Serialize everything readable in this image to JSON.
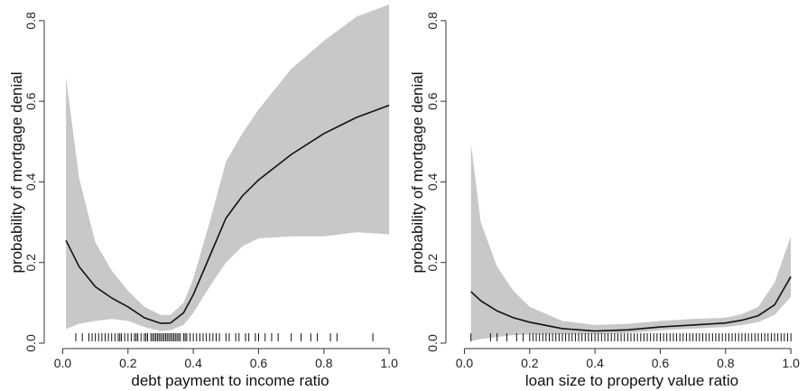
{
  "colors": {
    "band": "#c8c8c8",
    "line": "#111111",
    "rug": "#111111"
  },
  "chart_data": [
    {
      "type": "line",
      "title": "",
      "xlabel": "debt payment to income ratio",
      "ylabel": "probability of mortgage denial",
      "xlim": [
        -0.04,
        1.03
      ],
      "ylim": [
        0.0,
        0.84
      ],
      "xticks": [
        0.0,
        0.2,
        0.4,
        0.6,
        0.8,
        1.0
      ],
      "xtick_labels": [
        "0.0",
        "0.2",
        "0.4",
        "0.6",
        "0.8",
        "1.0"
      ],
      "yticks": [
        0.0,
        0.2,
        0.4,
        0.6,
        0.8
      ],
      "ytick_labels": [
        "0.0",
        "0.2",
        "0.4",
        "0.6",
        "0.8"
      ],
      "grid": false,
      "series": [
        {
          "x": [
            0.01,
            0.05,
            0.1,
            0.15,
            0.2,
            0.25,
            0.3,
            0.33,
            0.37,
            0.4,
            0.45,
            0.5,
            0.55,
            0.6,
            0.7,
            0.8,
            0.9,
            1.0
          ],
          "y": [
            0.255,
            0.19,
            0.14,
            0.112,
            0.09,
            0.063,
            0.049,
            0.05,
            0.075,
            0.12,
            0.215,
            0.31,
            0.365,
            0.405,
            0.468,
            0.52,
            0.56,
            0.59
          ],
          "lower": [
            0.035,
            0.048,
            0.055,
            0.06,
            0.055,
            0.04,
            0.03,
            0.032,
            0.045,
            0.075,
            0.14,
            0.2,
            0.24,
            0.26,
            0.265,
            0.265,
            0.275,
            0.27
          ],
          "upper": [
            0.66,
            0.41,
            0.25,
            0.18,
            0.13,
            0.09,
            0.07,
            0.07,
            0.1,
            0.16,
            0.3,
            0.45,
            0.52,
            0.58,
            0.68,
            0.75,
            0.81,
            0.84
          ]
        }
      ],
      "rug": [
        0.04,
        0.06,
        0.08,
        0.09,
        0.1,
        0.11,
        0.12,
        0.13,
        0.14,
        0.15,
        0.16,
        0.17,
        0.175,
        0.18,
        0.19,
        0.2,
        0.21,
        0.22,
        0.225,
        0.23,
        0.24,
        0.25,
        0.255,
        0.26,
        0.27,
        0.275,
        0.28,
        0.285,
        0.29,
        0.295,
        0.3,
        0.305,
        0.31,
        0.315,
        0.32,
        0.325,
        0.33,
        0.335,
        0.34,
        0.345,
        0.35,
        0.355,
        0.36,
        0.37,
        0.375,
        0.38,
        0.39,
        0.4,
        0.41,
        0.42,
        0.43,
        0.44,
        0.45,
        0.46,
        0.47,
        0.48,
        0.5,
        0.51,
        0.53,
        0.54,
        0.56,
        0.57,
        0.59,
        0.6,
        0.62,
        0.64,
        0.66,
        0.7,
        0.73,
        0.76,
        0.78,
        0.82,
        0.84,
        0.95
      ]
    },
    {
      "type": "line",
      "title": "",
      "xlabel": "loan size to property value ratio",
      "ylabel": "probability of mortgage denial",
      "xlim": [
        -0.04,
        1.03
      ],
      "ylim": [
        0.0,
        0.84
      ],
      "xticks": [
        0.0,
        0.2,
        0.4,
        0.6,
        0.8,
        1.0
      ],
      "xtick_labels": [
        "0.0",
        "0.2",
        "0.4",
        "0.6",
        "0.8",
        "1.0"
      ],
      "yticks": [
        0.0,
        0.2,
        0.4,
        0.6,
        0.8
      ],
      "ytick_labels": [
        "0.0",
        "0.2",
        "0.4",
        "0.6",
        "0.8"
      ],
      "grid": false,
      "series": [
        {
          "x": [
            0.02,
            0.05,
            0.1,
            0.15,
            0.2,
            0.3,
            0.4,
            0.5,
            0.6,
            0.7,
            0.8,
            0.85,
            0.9,
            0.95,
            1.0
          ],
          "y": [
            0.128,
            0.105,
            0.08,
            0.063,
            0.052,
            0.036,
            0.03,
            0.033,
            0.04,
            0.045,
            0.05,
            0.057,
            0.068,
            0.095,
            0.165
          ],
          "lower": [
            0.005,
            0.01,
            0.015,
            0.02,
            0.022,
            0.022,
            0.022,
            0.025,
            0.032,
            0.036,
            0.04,
            0.045,
            0.052,
            0.07,
            0.115
          ],
          "upper": [
            0.495,
            0.3,
            0.19,
            0.13,
            0.09,
            0.055,
            0.045,
            0.048,
            0.055,
            0.06,
            0.063,
            0.072,
            0.09,
            0.15,
            0.265
          ]
        }
      ],
      "rug": [
        0.02,
        0.08,
        0.1,
        0.13,
        0.16,
        0.18,
        0.2,
        0.21,
        0.22,
        0.23,
        0.24,
        0.25,
        0.26,
        0.27,
        0.28,
        0.29,
        0.3,
        0.31,
        0.32,
        0.33,
        0.34,
        0.35,
        0.36,
        0.37,
        0.38,
        0.39,
        0.4,
        0.41,
        0.42,
        0.43,
        0.44,
        0.45,
        0.46,
        0.47,
        0.48,
        0.49,
        0.5,
        0.51,
        0.52,
        0.53,
        0.54,
        0.55,
        0.56,
        0.57,
        0.58,
        0.59,
        0.6,
        0.61,
        0.62,
        0.63,
        0.64,
        0.65,
        0.66,
        0.67,
        0.68,
        0.69,
        0.7,
        0.71,
        0.72,
        0.73,
        0.74,
        0.75,
        0.76,
        0.77,
        0.78,
        0.79,
        0.8,
        0.81,
        0.82,
        0.83,
        0.84,
        0.85,
        0.86,
        0.87,
        0.88,
        0.89,
        0.9,
        0.91,
        0.92,
        0.93,
        0.94,
        0.95,
        0.96,
        0.97,
        0.98,
        0.99,
        1.0
      ]
    }
  ]
}
